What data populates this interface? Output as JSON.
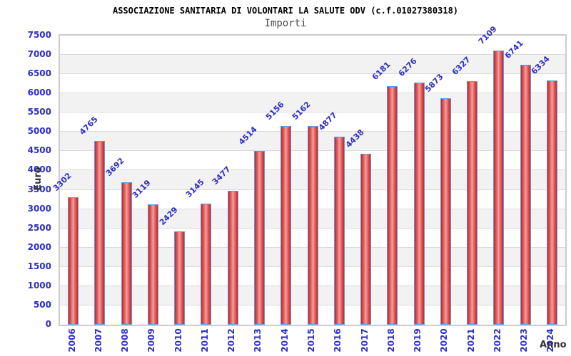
{
  "chart_data": {
    "type": "bar",
    "title": "ASSOCIAZIONE SANITARIA DI VOLONTARI LA SALUTE ODV (c.f.01027380318)",
    "subtitle": "Importi",
    "xlabel": "Anno",
    "ylabel": "Euro",
    "categories": [
      "2006",
      "2007",
      "2008",
      "2009",
      "2010",
      "2011",
      "2012",
      "2013",
      "2014",
      "2015",
      "2016",
      "2017",
      "2018",
      "2019",
      "2020",
      "2021",
      "2022",
      "2023",
      "2024"
    ],
    "values": [
      3302,
      4765,
      3692,
      3119,
      2429,
      3145,
      3477,
      4514,
      5156,
      5162,
      4877,
      4438,
      6181,
      6276,
      5873,
      6327,
      7109,
      6741,
      6334
    ],
    "ylim": [
      0,
      7500
    ],
    "ytick_step": 500,
    "grid": true,
    "legend_position": "none",
    "bands_alternating": true,
    "colors": {
      "tick_text": "#2d2dc8",
      "value_label_text": "#2d2dc8",
      "bar_dark": "#c62626",
      "bar_mid": "#e05050",
      "bar_light": "#efa0a0",
      "bar_outline": "#5b9bdc",
      "band_gray": "#f2f2f2",
      "band_white": "#ffffff",
      "gridline": "#dadada",
      "plot_border": "#cccccc",
      "title_text": "#000000",
      "subtitle_text": "#4a4a4a",
      "axis_title_text": "#333333"
    }
  }
}
